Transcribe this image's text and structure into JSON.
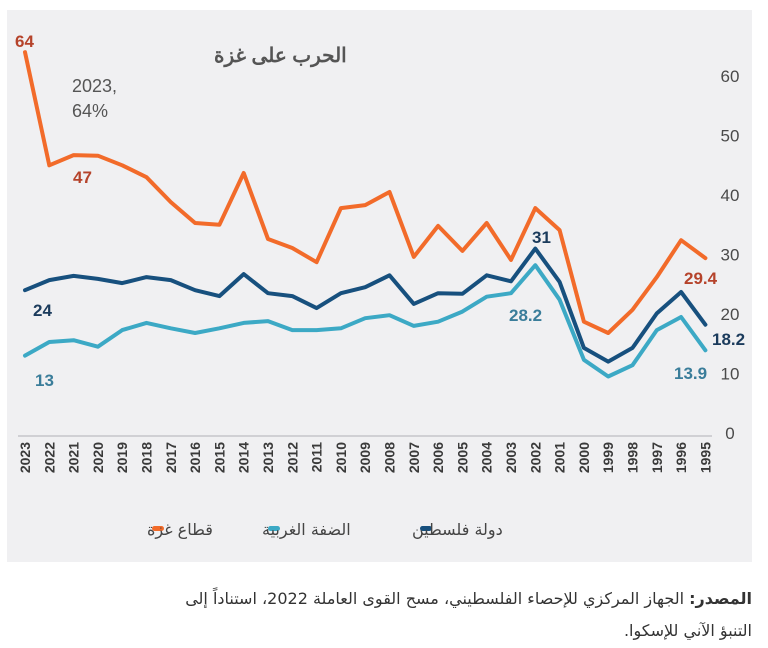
{
  "chart_data": {
    "type": "line",
    "x": [
      2023,
      2022,
      2021,
      2020,
      2019,
      2018,
      2017,
      2016,
      2015,
      2014,
      2013,
      2012,
      2011,
      2010,
      2009,
      2008,
      2007,
      2006,
      2005,
      2004,
      2003,
      2002,
      2001,
      2000,
      1999,
      1998,
      1997,
      1996,
      1995
    ],
    "x_order": "reversed",
    "ylim": [
      0,
      60
    ],
    "yticks": [
      0,
      10,
      20,
      30,
      40,
      50,
      60
    ],
    "y_axis_side": "right",
    "grid": false,
    "legend_position": "bottom",
    "series": [
      {
        "name": "قطاع غزة",
        "color": "#f26b2a",
        "values": [
          64,
          45.0,
          46.7,
          46.6,
          45.0,
          43.0,
          38.8,
          35.3,
          35.0,
          43.7,
          32.6,
          31.1,
          28.7,
          37.8,
          38.3,
          40.5,
          29.6,
          34.8,
          30.6,
          35.3,
          29.1,
          37.8,
          34.1,
          18.7,
          16.8,
          20.7,
          26.2,
          32.4,
          29.4
        ]
      },
      {
        "name": "الضفة الغربية",
        "color": "#3ca9c5",
        "values": [
          13,
          15.3,
          15.6,
          14.5,
          17.3,
          18.5,
          17.6,
          16.8,
          17.6,
          18.5,
          18.8,
          17.3,
          17.3,
          17.6,
          19.3,
          19.8,
          18.0,
          18.7,
          20.4,
          22.9,
          23.5,
          28.2,
          22.4,
          12.3,
          9.5,
          11.4,
          17.3,
          19.5,
          13.9
        ]
      },
      {
        "name": "دولة فلسطين",
        "color": "#17507e",
        "values": [
          24,
          25.7,
          26.4,
          25.9,
          25.2,
          26.2,
          25.7,
          24.0,
          23.0,
          26.7,
          23.5,
          23.0,
          21.0,
          23.5,
          24.5,
          26.5,
          21.7,
          23.5,
          23.4,
          26.5,
          25.5,
          31,
          25.4,
          14.3,
          12.0,
          14.3,
          20.1,
          23.7,
          18.2
        ]
      }
    ],
    "data_labels": {
      "gaza_2023": "64",
      "gaza_2021": "47",
      "gaza_1995": "29.4",
      "pal_2023": "24",
      "pal_2002": "31",
      "pal_1995": "18.2",
      "wb_2023": "13",
      "wb_2002": "28.2",
      "wb_1995": "13.9"
    },
    "annotation": {
      "title": "الحرب على غزة",
      "line1": "2023,",
      "line2": "64%"
    },
    "label_colors": {
      "gaza": "#b5432b",
      "pal": "#1b3b5c",
      "wb": "#3a7d9a"
    }
  },
  "legend": {
    "items": [
      {
        "label": "دولة فلسطين",
        "color": "#17507e"
      },
      {
        "label": "الضفة الغربية",
        "color": "#3ca9c5"
      },
      {
        "label": "قطاع غزة",
        "color": "#f26b2a"
      }
    ]
  },
  "source": {
    "prefix": "المصدر:",
    "line1": "الجهاز المركزي للإحصاء الفلسطيني، مسح القوى العاملة 2022، استناداً إلى",
    "line2": "التنبؤ الآني للإسكوا."
  },
  "panel_bg": "#f0f0f2"
}
